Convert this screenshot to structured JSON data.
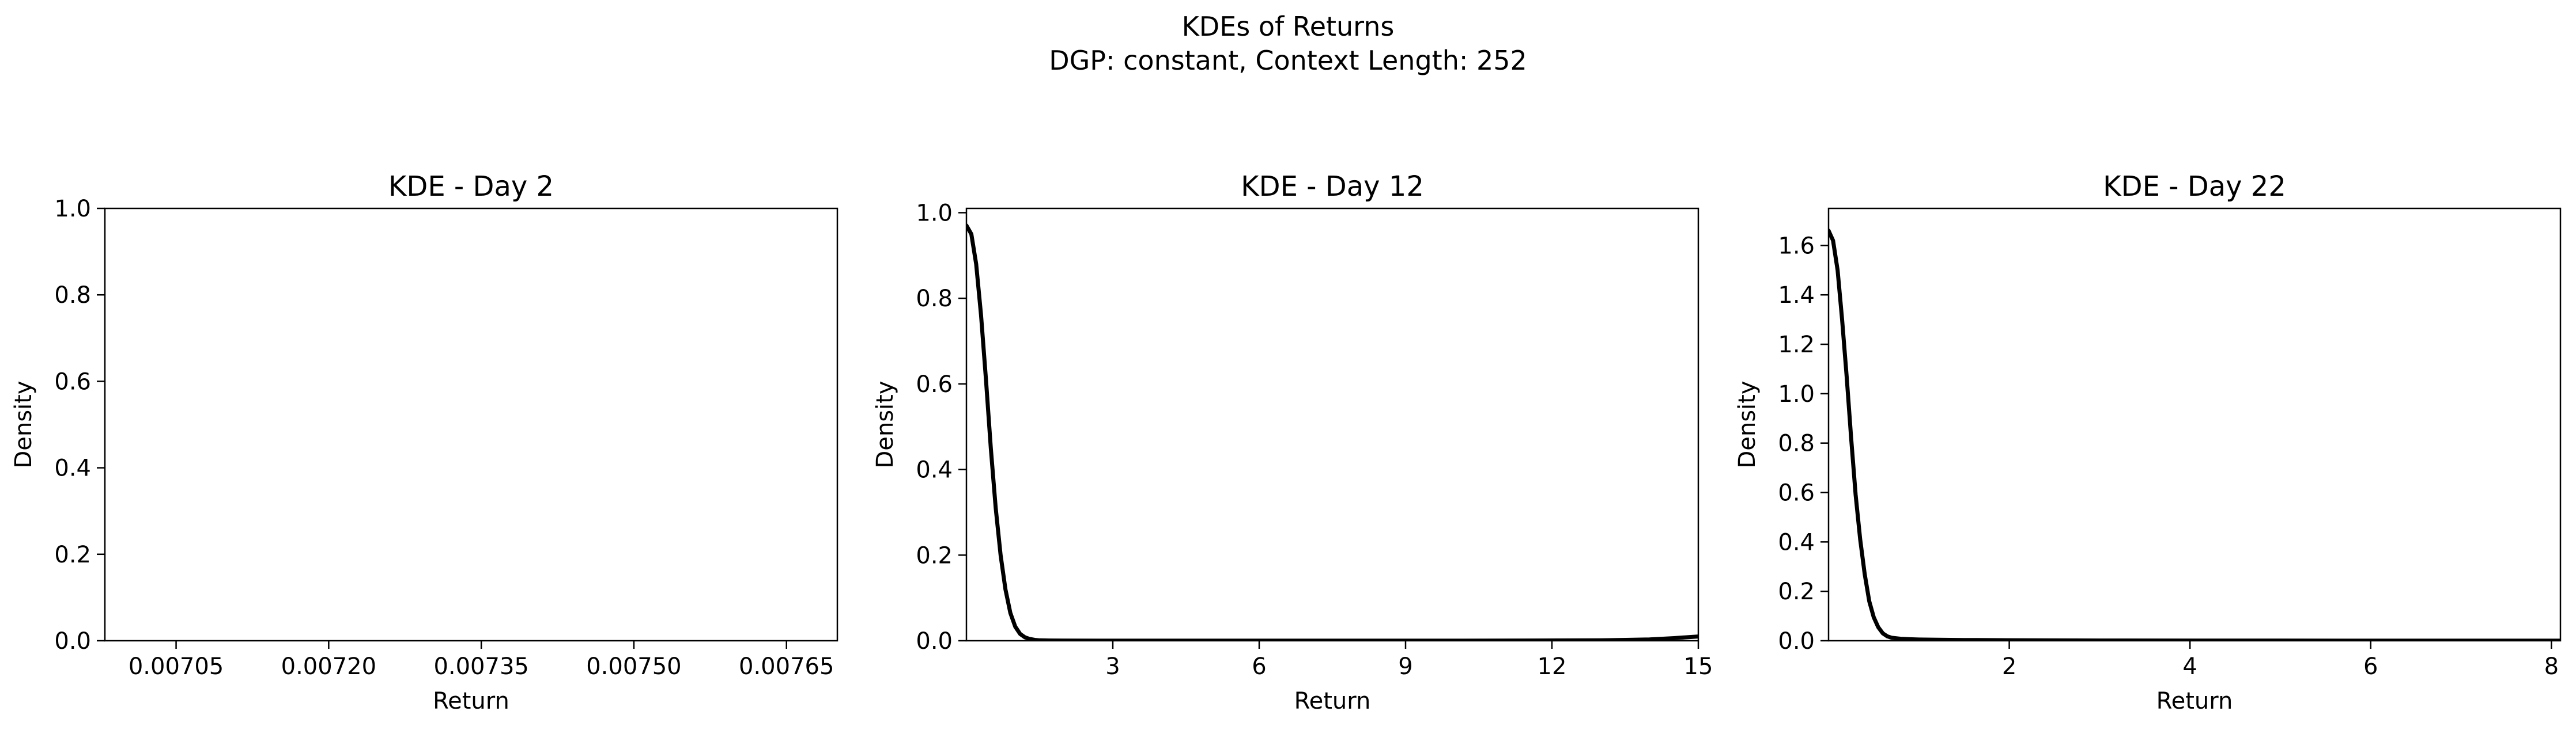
{
  "figure": {
    "title_line1": "KDEs of Returns",
    "title_line2": "DGP: constant, Context Length: 252"
  },
  "chart_data": [
    {
      "type": "line",
      "title": "KDE - Day 2",
      "xlabel": "Return",
      "ylabel": "Density",
      "xlim": [
        0.00698,
        0.0077
      ],
      "ylim": [
        0,
        1.0
      ],
      "xticks": [
        0.00705,
        0.0072,
        0.00735,
        0.0075,
        0.00765
      ],
      "xtick_labels": [
        "0.00705",
        "0.00720",
        "0.00735",
        "0.00750",
        "0.00765"
      ],
      "yticks": [
        0,
        0.2,
        0.4,
        0.6,
        0.8,
        1.0
      ],
      "ytick_labels": [
        "0.0",
        "0.2",
        "0.4",
        "0.6",
        "0.8",
        "1.0"
      ],
      "grid": false,
      "series": [
        {
          "color": "#000000",
          "x": [],
          "y": []
        }
      ]
    },
    {
      "type": "line",
      "title": "KDE - Day 12",
      "xlabel": "Return",
      "ylabel": "Density",
      "xlim": [
        0.0,
        15.0
      ],
      "ylim": [
        0,
        1.01
      ],
      "xticks": [
        3,
        6,
        9,
        12,
        15
      ],
      "xtick_labels": [
        "3",
        "6",
        "9",
        "12",
        "15"
      ],
      "yticks": [
        0,
        0.2,
        0.4,
        0.6,
        0.8,
        1.0
      ],
      "ytick_labels": [
        "0.0",
        "0.2",
        "0.4",
        "0.6",
        "0.8",
        "1.0"
      ],
      "grid": false,
      "series": [
        {
          "color": "#000000",
          "x": [
            0.0,
            0.1,
            0.2,
            0.3,
            0.4,
            0.5,
            0.6,
            0.7,
            0.8,
            0.9,
            1.0,
            1.1,
            1.2,
            1.3,
            1.4,
            1.5,
            1.7,
            2.0,
            3.0,
            5.0,
            8.0,
            11.0,
            13.0,
            14.0,
            14.5,
            15.0
          ],
          "y": [
            0.97,
            0.95,
            0.88,
            0.76,
            0.61,
            0.45,
            0.31,
            0.2,
            0.12,
            0.065,
            0.033,
            0.016,
            0.008,
            0.004,
            0.002,
            0.001,
            0.0005,
            0.0003,
            0.0002,
            0.0002,
            0.0002,
            0.0003,
            0.001,
            0.003,
            0.006,
            0.01
          ]
        }
      ]
    },
    {
      "type": "line",
      "title": "KDE - Day 22",
      "xlabel": "Return",
      "ylabel": "Density",
      "xlim": [
        0.0,
        8.1
      ],
      "ylim": [
        0,
        1.75
      ],
      "xticks": [
        2,
        4,
        6,
        8
      ],
      "xtick_labels": [
        "2",
        "4",
        "6",
        "8"
      ],
      "yticks": [
        0,
        0.2,
        0.4,
        0.6,
        0.8,
        1.0,
        1.2,
        1.4,
        1.6
      ],
      "ytick_labels": [
        "0.0",
        "0.2",
        "0.4",
        "0.6",
        "0.8",
        "1.0",
        "1.2",
        "1.4",
        "1.6"
      ],
      "grid": false,
      "series": [
        {
          "color": "#000000",
          "x": [
            0.0,
            0.05,
            0.1,
            0.15,
            0.2,
            0.25,
            0.3,
            0.35,
            0.4,
            0.45,
            0.5,
            0.55,
            0.6,
            0.65,
            0.7,
            0.8,
            0.9,
            1.0,
            1.2,
            1.5,
            2.0,
            3.0,
            5.0,
            7.0,
            8.1
          ],
          "y": [
            1.66,
            1.62,
            1.5,
            1.3,
            1.07,
            0.82,
            0.59,
            0.41,
            0.27,
            0.16,
            0.095,
            0.055,
            0.03,
            0.018,
            0.012,
            0.008,
            0.006,
            0.005,
            0.004,
            0.003,
            0.002,
            0.001,
            0.0005,
            0.0003,
            0.0002
          ]
        }
      ]
    }
  ]
}
